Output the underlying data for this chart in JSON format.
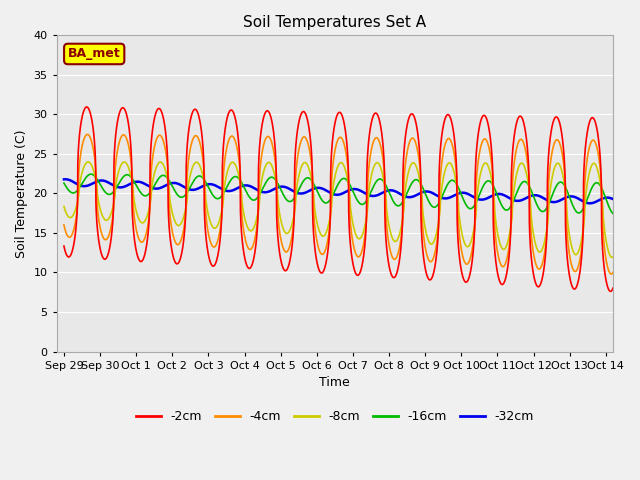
{
  "title": "Soil Temperatures Set A",
  "xlabel": "Time",
  "ylabel": "Soil Temperature (C)",
  "ylim": [
    0,
    40
  ],
  "yticks": [
    0,
    5,
    10,
    15,
    20,
    25,
    30,
    35,
    40
  ],
  "fig_facecolor": "#f0f0f0",
  "ax_facecolor": "#e8e8e8",
  "annotation_text": "BA_met",
  "legend_entries": [
    "-2cm",
    "-4cm",
    "-8cm",
    "-16cm",
    "-32cm"
  ],
  "line_colors": [
    "#FF0000",
    "#FF8C00",
    "#CCCC00",
    "#00BB00",
    "#0000EE"
  ],
  "line_widths": [
    1.2,
    1.2,
    1.2,
    1.2,
    1.8
  ],
  "num_days": 15.5,
  "samples_per_day": 288,
  "xtick_positions": [
    0,
    1,
    2,
    3,
    4,
    5,
    6,
    7,
    8,
    9,
    10,
    11,
    12,
    13,
    14,
    15
  ],
  "xtick_labels": [
    "Sep 29",
    "Sep 30",
    "Oct 1",
    "Oct 2",
    "Oct 3",
    "Oct 4",
    "Oct 5",
    "Oct 6",
    "Oct 7",
    "Oct 8",
    "Oct 9",
    "Oct 10",
    "Oct 11",
    "Oct 12",
    "Oct 13",
    "Oct 14"
  ]
}
